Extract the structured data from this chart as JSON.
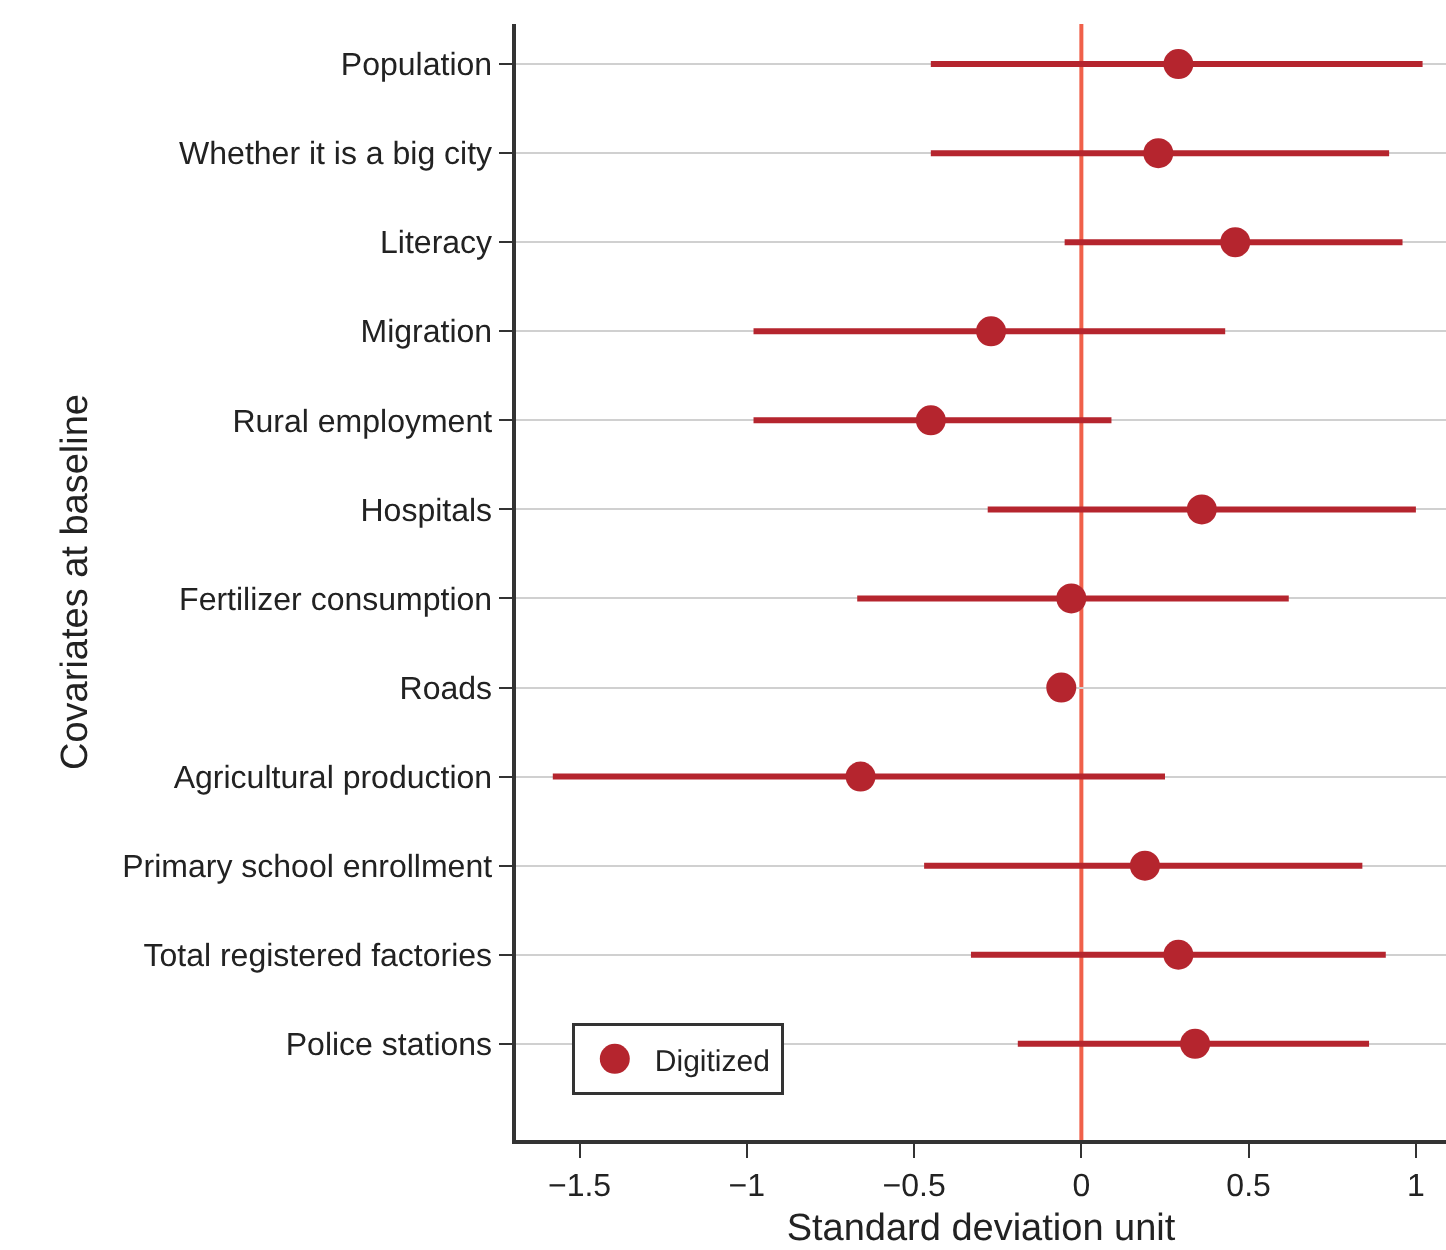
{
  "chart_data": {
    "type": "scatter",
    "orientation": "horizontal",
    "xlabel": "Standard deviation unit",
    "ylabel": "Covariates at baseline",
    "categories": [
      "Population",
      "Whether it is a big city",
      "Literacy",
      "Migration",
      "Rural employment",
      "Hospitals",
      "Fertilizer consumption",
      "Roads",
      "Agricultural production",
      "Primary school enrollment",
      "Total registered factories",
      "Police stations"
    ],
    "series": [
      {
        "name": "Digitized",
        "color": "#b5252e",
        "values": [
          0.29,
          0.23,
          0.46,
          -0.27,
          -0.45,
          0.36,
          -0.03,
          -0.06,
          -0.66,
          0.19,
          0.29,
          0.34
        ],
        "errors": [
          [
            -0.45,
            1.02
          ],
          [
            -0.45,
            0.92
          ],
          [
            -0.05,
            0.96
          ],
          [
            -0.98,
            0.43
          ],
          [
            -0.98,
            0.09
          ],
          [
            -0.28,
            1.0
          ],
          [
            -0.67,
            0.62
          ],
          null,
          [
            -1.58,
            0.25
          ],
          [
            -0.47,
            0.84
          ],
          [
            -0.33,
            0.91
          ],
          [
            -0.19,
            0.86
          ]
        ]
      }
    ],
    "xlim": [
      -1.69,
      1.09
    ],
    "xticks": [
      {
        "value": -1.5,
        "label": "−1.5"
      },
      {
        "value": -1,
        "label": "−1"
      },
      {
        "value": -0.5,
        "label": "−0.5"
      },
      0,
      0.5,
      1
    ],
    "ref_lines": [
      {
        "axis": "x",
        "value": 0,
        "color": "#f0604a"
      }
    ],
    "grid": "y",
    "legend": "bottom left",
    "marker": "circle"
  }
}
